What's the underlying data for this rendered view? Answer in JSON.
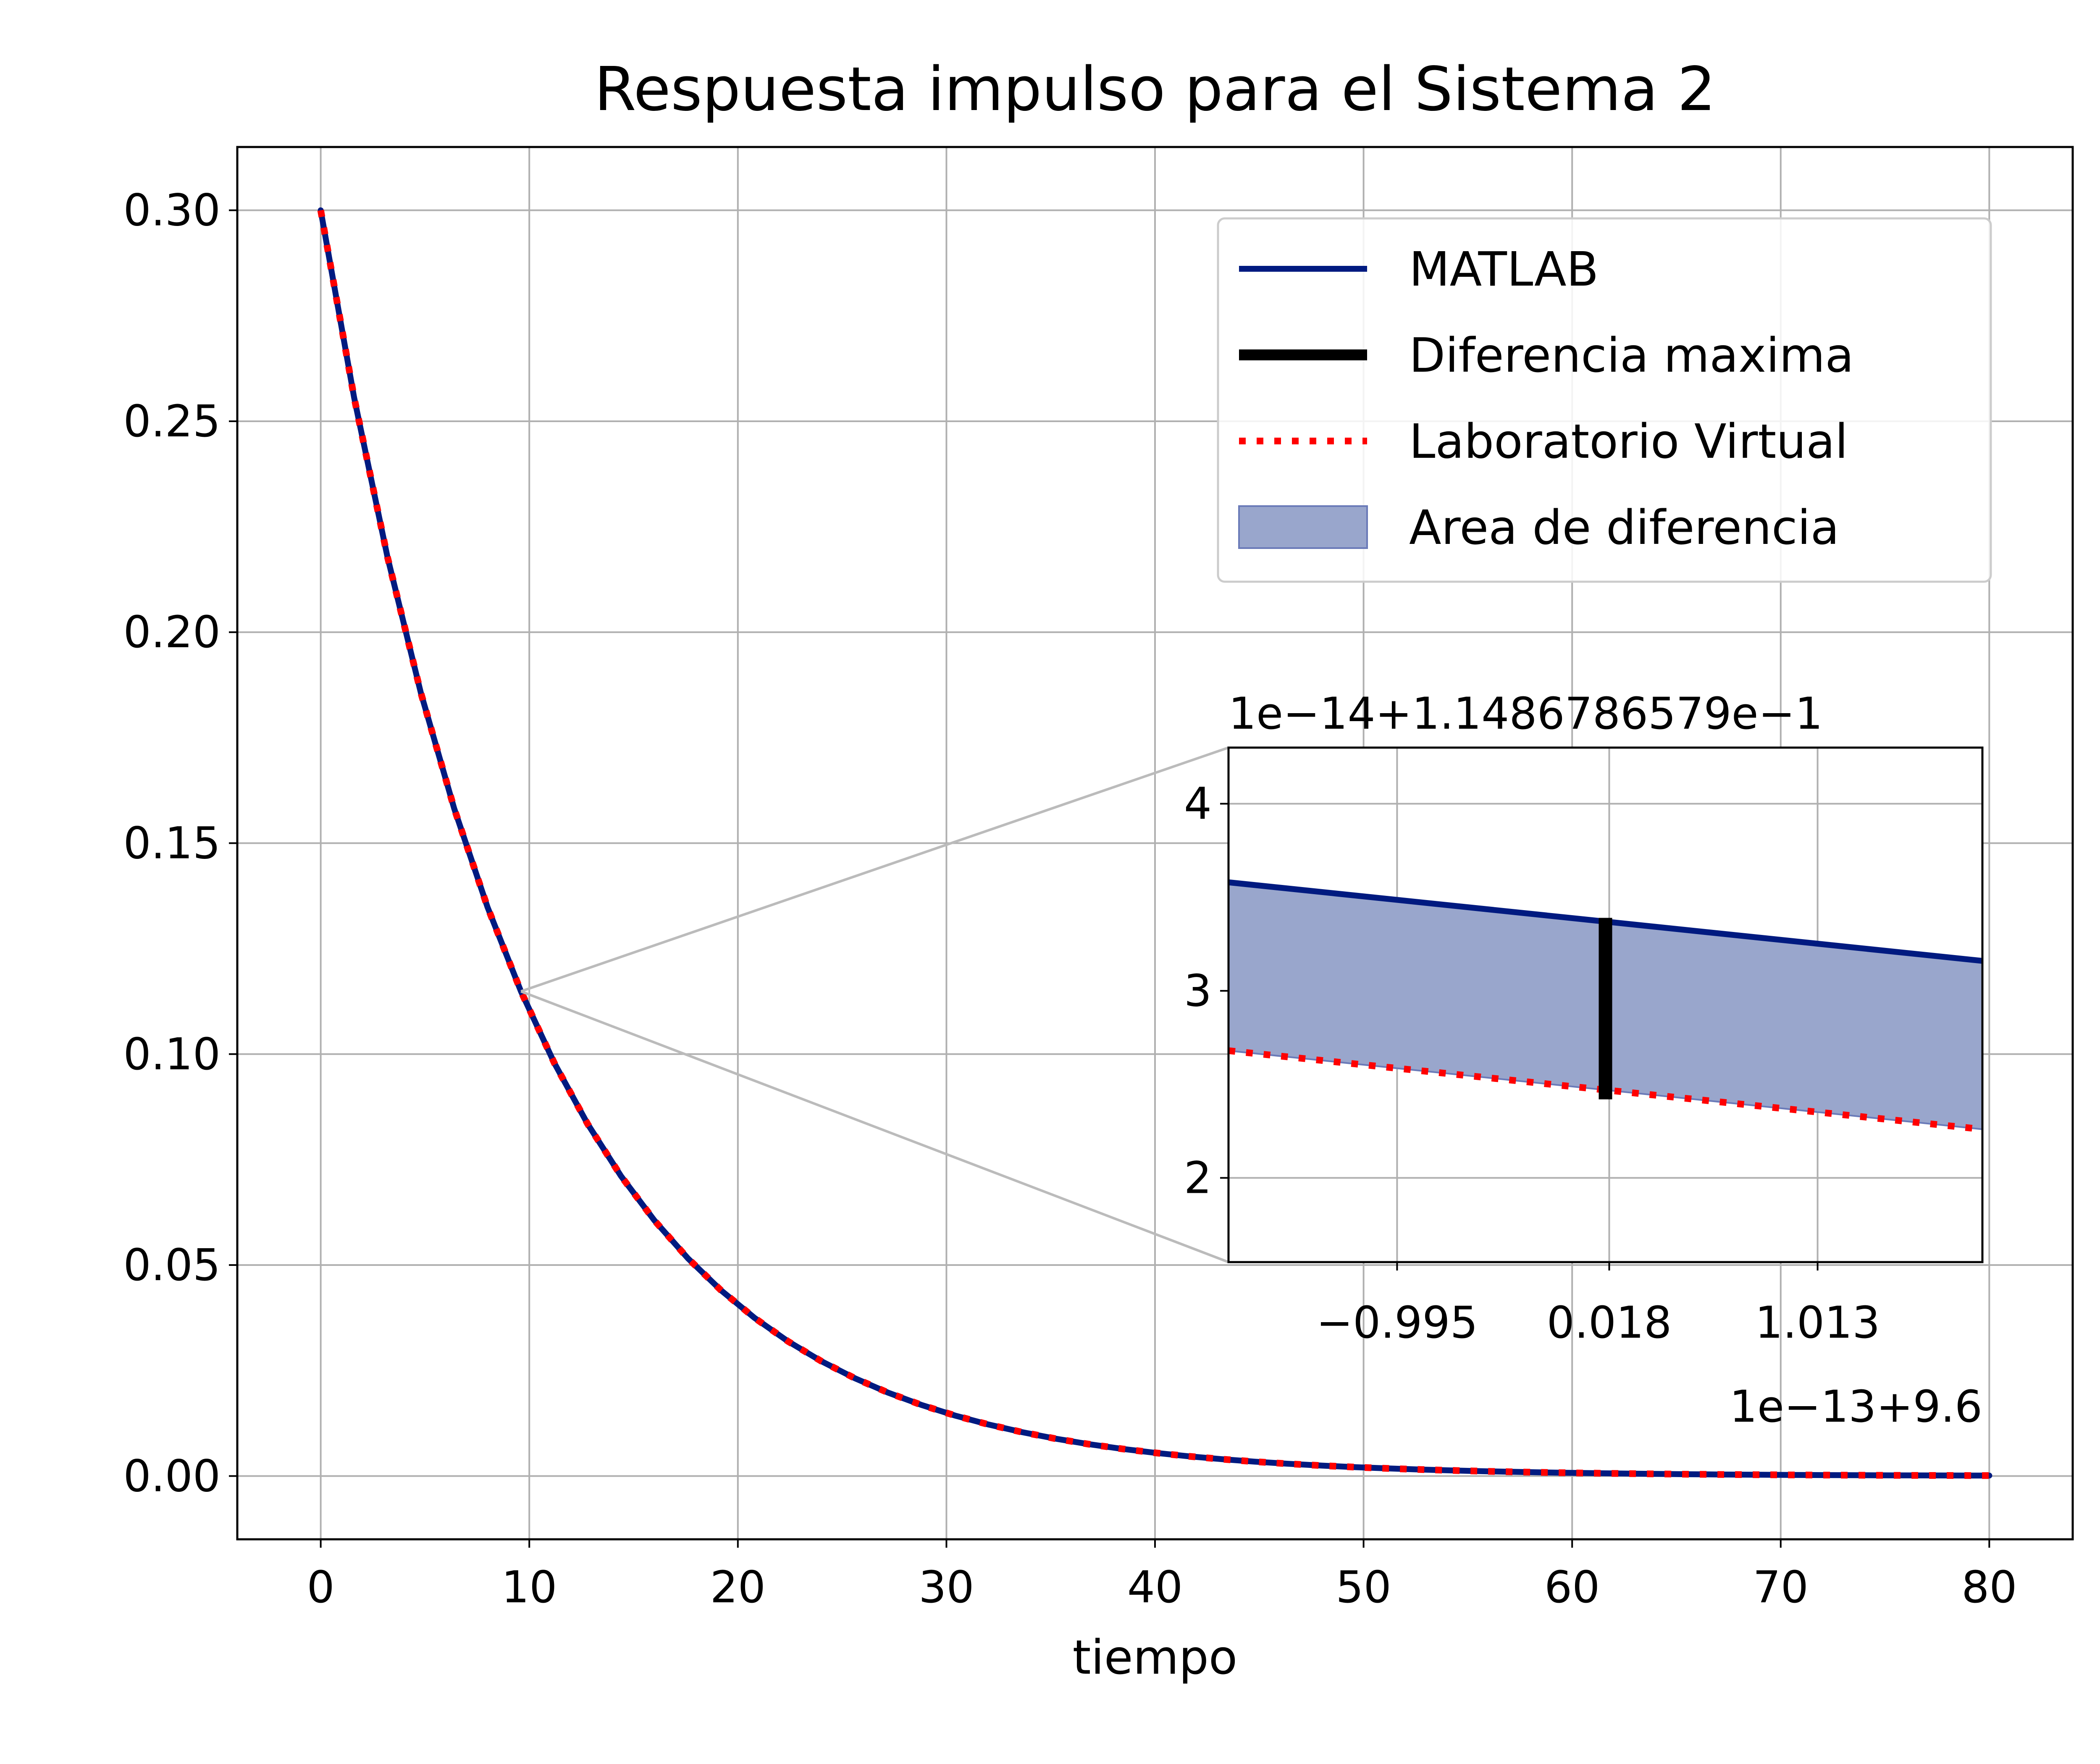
{
  "chart_data": {
    "type": "line",
    "title": "Respuesta impulso para el Sistema 2",
    "xlabel": "tiempo",
    "ylabel": "",
    "xlim": [
      -4,
      84
    ],
    "ylim": [
      -0.015,
      0.315
    ],
    "x_ticks": [
      0,
      10,
      20,
      30,
      40,
      50,
      60,
      70,
      80
    ],
    "x_tick_labels": [
      "0",
      "10",
      "20",
      "30",
      "40",
      "50",
      "60",
      "70",
      "80"
    ],
    "y_ticks": [
      0.0,
      0.05,
      0.1,
      0.15,
      0.2,
      0.25,
      0.3
    ],
    "y_tick_labels": [
      "0.00",
      "0.05",
      "0.10",
      "0.15",
      "0.20",
      "0.25",
      "0.30"
    ],
    "grid": true,
    "legend_position": "top-right",
    "curve_model": "0.3*exp(-t/10)",
    "x": [
      0,
      1.6,
      3.2,
      4.8,
      6.4,
      8.0,
      9.6,
      11.2,
      12.8,
      14.4,
      16.0,
      17.6,
      19.2,
      20.8,
      22.4,
      24.0,
      25.6,
      27.2,
      28.8,
      30.4,
      32.0,
      33.6,
      35.2,
      36.8,
      38.4,
      40.0,
      41.6,
      43.2,
      44.8,
      46.4,
      48.0,
      49.6,
      51.2,
      52.8,
      54.4,
      56.0,
      57.6,
      59.2,
      60.8,
      62.4,
      64.0,
      65.6,
      67.2,
      68.8,
      70.4,
      72.0,
      73.6,
      75.2,
      76.8,
      78.4,
      80.0
    ],
    "series": [
      {
        "name": "MATLAB",
        "color": "#001a80",
        "style": "solid"
      },
      {
        "name": "Laboratorio Virtual",
        "color": "#ff0000",
        "style": "dotted"
      }
    ],
    "legend": [
      {
        "label": "MATLAB",
        "kind": "line",
        "color": "#001a80"
      },
      {
        "label": "Diferencia maxima",
        "kind": "thick-line",
        "color": "#000000"
      },
      {
        "label": "Laboratorio Virtual",
        "kind": "dotted-line",
        "color": "#ff0000"
      },
      {
        "label": "Area de diferencia",
        "kind": "patch",
        "color": "#99a6cc"
      }
    ],
    "inset": {
      "zoom_point": {
        "x": 9.6,
        "y": 0.11487
      },
      "x_offset_label": "1e−13+9.6",
      "y_offset_label": "1e−14+1.1486786579e−1",
      "xlim": [
        -1.8,
        1.8
      ],
      "ylim": [
        1.55,
        4.3
      ],
      "x_ticks": [
        -0.995,
        0.018,
        1.013
      ],
      "x_tick_labels": [
        "−0.995",
        "0.018",
        "1.013"
      ],
      "y_ticks": [
        2,
        3,
        4
      ],
      "y_tick_labels": [
        "2",
        "3",
        "4"
      ],
      "matlab_line": {
        "x": [
          -1.8,
          1.8
        ],
        "y": [
          3.58,
          3.16
        ]
      },
      "lab_line": {
        "x": [
          -1.8,
          1.8
        ],
        "y": [
          2.68,
          2.26
        ]
      },
      "max_difference": {
        "x": 0.0,
        "y_low": 2.42,
        "y_high": 3.39
      },
      "area_color": "#99a6cc"
    }
  }
}
